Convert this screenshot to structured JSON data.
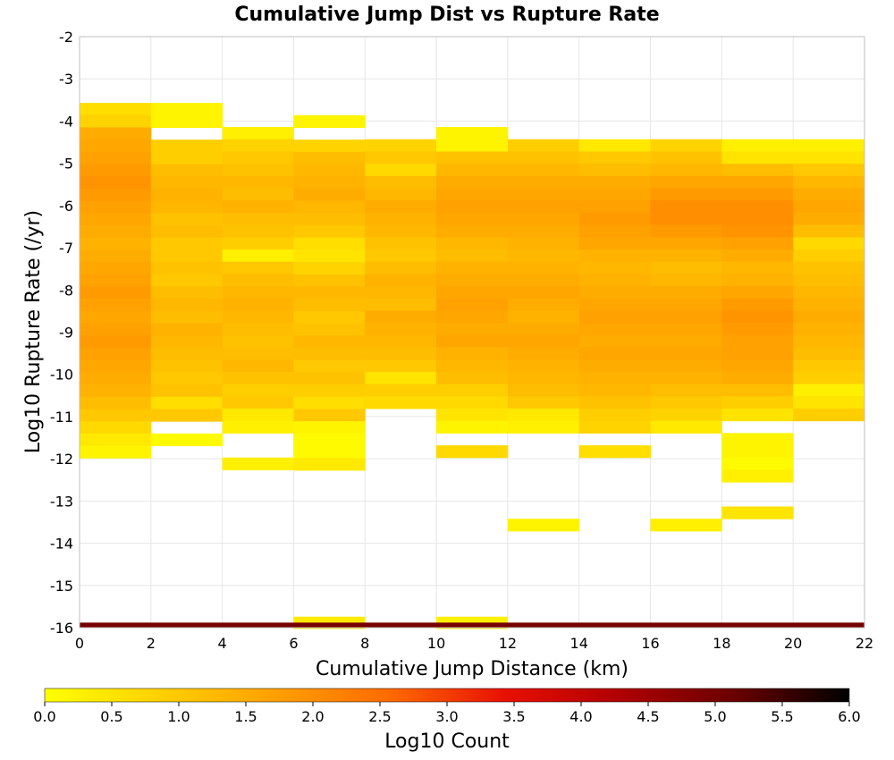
{
  "chart_data": {
    "type": "heatmap",
    "title": "Cumulative Jump Dist vs Rupture Rate",
    "xlabel": "Cumulative Jump Distance (km)",
    "ylabel": "Log10 Rupture Rate (/yr)",
    "colorbar_label": "Log10 Count",
    "xlim": [
      0,
      22
    ],
    "ylim": [
      -16,
      -2
    ],
    "x_ticks": [
      "0",
      "2",
      "4",
      "6",
      "8",
      "10",
      "12",
      "14",
      "16",
      "18",
      "20",
      "22"
    ],
    "y_ticks": [
      "-2",
      "-3",
      "-4",
      "-5",
      "-6",
      "-7",
      "-8",
      "-9",
      "-10",
      "-11",
      "-12",
      "-13",
      "-14",
      "-15",
      "-16"
    ],
    "colorbar_ticks": [
      "0.0",
      "0.5",
      "1.0",
      "1.5",
      "2.0",
      "2.5",
      "3.0",
      "3.5",
      "4.0",
      "4.5",
      "5.0",
      "5.5",
      "6.0"
    ],
    "colorbar_range": [
      0,
      6
    ],
    "colormap": [
      "#ffff00",
      "#ffd000",
      "#ffa000",
      "#ff6a00",
      "#e81000",
      "#b00000",
      "#6a0000",
      "#000000"
    ],
    "grid": true,
    "x_bin_width": 2,
    "y_bin_height": 0.29,
    "columns": [
      {
        "x_start": 0,
        "y_top": -3.57,
        "values": [
          0.6,
          0.8,
          1.5,
          1.6,
          1.7,
          1.8,
          1.9,
          1.8,
          1.7,
          1.6,
          1.5,
          1.4,
          1.5,
          1.6,
          1.7,
          1.8,
          1.7,
          1.6,
          1.7,
          1.8,
          1.7,
          1.6,
          1.5,
          1.4,
          1.2,
          1.0,
          0.7,
          0.4,
          0.2
        ]
      },
      {
        "x_start": 2,
        "y_top": -3.57,
        "values": [
          0.2,
          0.2,
          null,
          0.9,
          0.9,
          1.2,
          1.3,
          1.4,
          1.3,
          1.1,
          1.2,
          1.0,
          1.0,
          1.1,
          1.0,
          1.2,
          1.3,
          1.2,
          1.4,
          1.3,
          1.2,
          1.1,
          1.0,
          1.1,
          0.6,
          1.0,
          null,
          0.1
        ]
      },
      {
        "x_start": 4,
        "y_top": -4.14,
        "values": [
          0.3,
          0.8,
          1.0,
          1.1,
          1.3,
          1.2,
          1.4,
          1.2,
          1.1,
          0.9,
          0.3,
          1.0,
          1.2,
          1.3,
          1.4,
          1.3,
          1.2,
          1.1,
          1.2,
          1.3,
          1.1,
          0.9,
          1.0,
          0.4,
          0.3,
          null,
          null,
          0.3
        ]
      },
      {
        "x_start": 6,
        "y_top": -3.86,
        "values": [
          0.2,
          null,
          0.8,
          1.2,
          1.3,
          1.4,
          1.5,
          1.3,
          1.2,
          1.0,
          0.6,
          0.5,
          0.8,
          1.1,
          1.3,
          1.2,
          1.0,
          1.1,
          1.3,
          1.2,
          1.0,
          1.1,
          0.9,
          0.6,
          1.0,
          0.2,
          0.1,
          0.1,
          0.4
        ]
      },
      {
        "x_start": 8,
        "y_top": -4.43,
        "values": [
          0.8,
          1.0,
          0.7,
          1.2,
          1.3,
          1.5,
          1.4,
          1.3,
          1.1,
          1.0,
          1.2,
          1.4,
          1.3,
          1.2,
          1.5,
          1.4,
          1.3,
          1.2,
          1.0,
          0.5,
          0.9,
          0.7
        ]
      },
      {
        "x_start": 10,
        "y_top": -4.14,
        "values": [
          0.2,
          0.2,
          1.1,
          1.3,
          1.5,
          1.6,
          1.7,
          1.6,
          1.5,
          1.3,
          1.2,
          1.4,
          1.5,
          1.6,
          1.7,
          1.6,
          1.5,
          1.6,
          1.4,
          1.3,
          1.2,
          0.9,
          0.7,
          0.5,
          0.2,
          null,
          0.7
        ]
      },
      {
        "x_start": 12,
        "y_top": -4.43,
        "values": [
          0.9,
          1.1,
          1.3,
          1.5,
          1.6,
          1.7,
          1.6,
          1.5,
          1.4,
          1.3,
          1.4,
          1.5,
          1.6,
          1.5,
          1.4,
          1.5,
          1.6,
          1.5,
          1.4,
          1.3,
          1.2,
          1.0,
          0.4,
          0.3,
          null,
          null,
          null,
          null,
          null,
          null,
          null,
          0.2
        ]
      },
      {
        "x_start": 14,
        "y_top": -4.43,
        "values": [
          0.4,
          1.0,
          1.2,
          1.5,
          1.6,
          1.7,
          1.8,
          1.7,
          1.6,
          1.4,
          1.3,
          1.4,
          1.5,
          1.6,
          1.7,
          1.6,
          1.5,
          1.6,
          1.5,
          1.4,
          1.3,
          1.1,
          0.9,
          0.8,
          null,
          0.6
        ]
      },
      {
        "x_start": 16,
        "y_top": -4.43,
        "values": [
          0.8,
          1.1,
          1.3,
          1.6,
          1.8,
          2.0,
          2.0,
          1.8,
          1.6,
          1.4,
          1.2,
          1.3,
          1.5,
          1.6,
          1.7,
          1.6,
          1.5,
          1.6,
          1.5,
          1.4,
          1.2,
          1.0,
          0.8,
          0.4,
          null,
          null,
          null,
          null,
          null,
          null,
          null,
          0.3
        ]
      },
      {
        "x_start": 18,
        "y_top": -4.43,
        "values": [
          0.3,
          0.5,
          1.2,
          1.6,
          1.8,
          2.0,
          2.0,
          1.9,
          1.7,
          1.5,
          1.3,
          1.4,
          1.6,
          1.8,
          1.9,
          1.8,
          1.7,
          1.7,
          1.6,
          1.5,
          1.2,
          0.9,
          0.5,
          null,
          0.2,
          0.2,
          0.1,
          0.3,
          null,
          null,
          0.5
        ]
      },
      {
        "x_start": 20,
        "y_top": -4.43,
        "values": [
          0.3,
          0.5,
          1.0,
          1.3,
          1.5,
          1.6,
          1.5,
          1.2,
          0.7,
          0.9,
          1.1,
          1.2,
          1.3,
          1.4,
          1.5,
          1.4,
          1.3,
          1.2,
          1.0,
          0.9,
          0.3,
          0.5,
          0.9
        ]
      }
    ],
    "bottom_band": {
      "y": -16,
      "x_range": [
        0,
        22
      ],
      "value": 5.0
    },
    "extra_bins": [
      {
        "x_start": 6,
        "y": -15.74,
        "value": 0.4
      },
      {
        "x_start": 10,
        "y": -15.74,
        "value": 0.3
      }
    ]
  }
}
